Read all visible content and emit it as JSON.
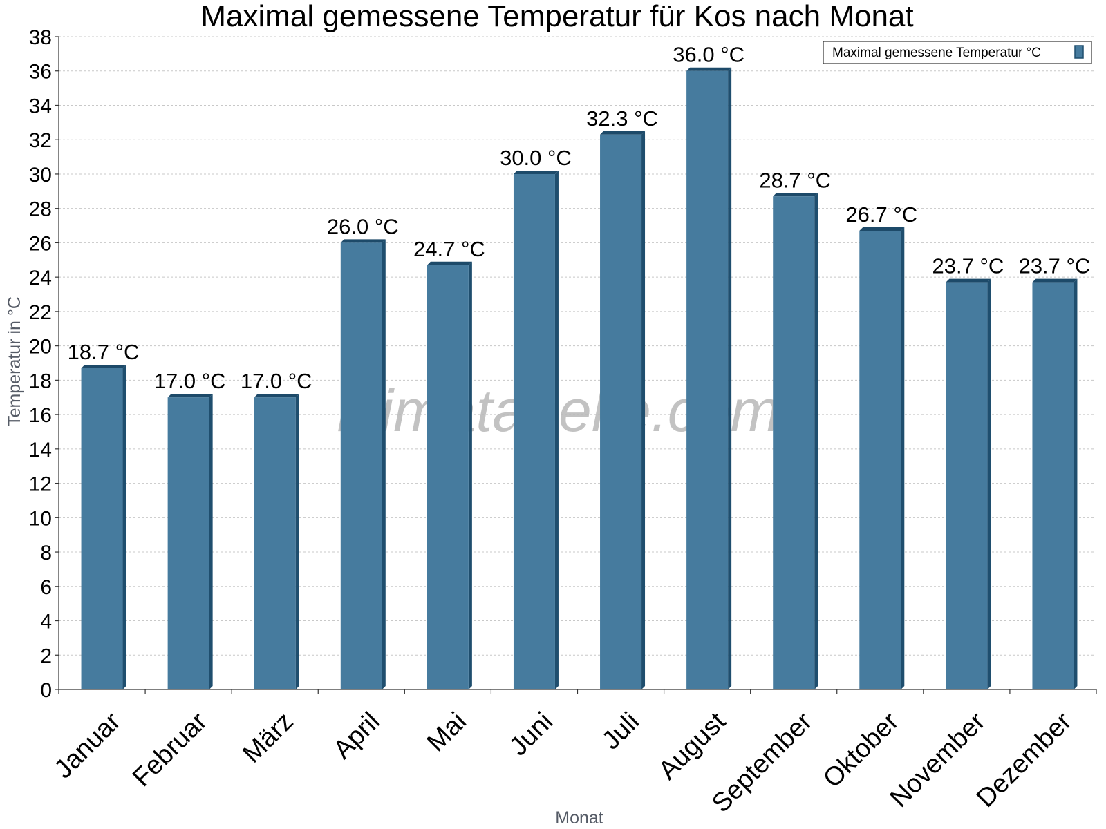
{
  "watermark": "klimatabelle.com",
  "colors": {
    "bar_front": "#467b9e",
    "bar_side": "#1f4e6e",
    "bar_top": "#1d4a69"
  },
  "chart_data": {
    "type": "bar",
    "title": "Maximal gemessene Temperatur für Kos nach Monat",
    "xlabel": "Monat",
    "ylabel": "Temperatur in °C",
    "ylim": [
      0,
      38
    ],
    "yticks": [
      "0",
      "2",
      "4",
      "6",
      "8",
      "10",
      "12",
      "14",
      "16",
      "18",
      "20",
      "22",
      "24",
      "26",
      "28",
      "30",
      "32",
      "34",
      "36",
      "38"
    ],
    "grid": true,
    "legend_position": "top-right",
    "categories": [
      "Januar",
      "Februar",
      "März",
      "April",
      "Mai",
      "Juni",
      "Juli",
      "August",
      "September",
      "Oktober",
      "November",
      "Dezember"
    ],
    "series": [
      {
        "name": "Maximal gemessene Temperatur °C",
        "values": [
          18.7,
          17.0,
          17.0,
          26.0,
          24.7,
          30.0,
          32.3,
          36.0,
          28.7,
          26.7,
          23.7,
          23.7
        ],
        "labels": [
          "18.7 °C",
          "17.0 °C",
          "17.0 °C",
          "26.0 °C",
          "24.7 °C",
          "30.0 °C",
          "32.3 °C",
          "36.0 °C",
          "28.7 °C",
          "26.7 °C",
          "23.7 °C",
          "23.7 °C"
        ]
      }
    ]
  }
}
